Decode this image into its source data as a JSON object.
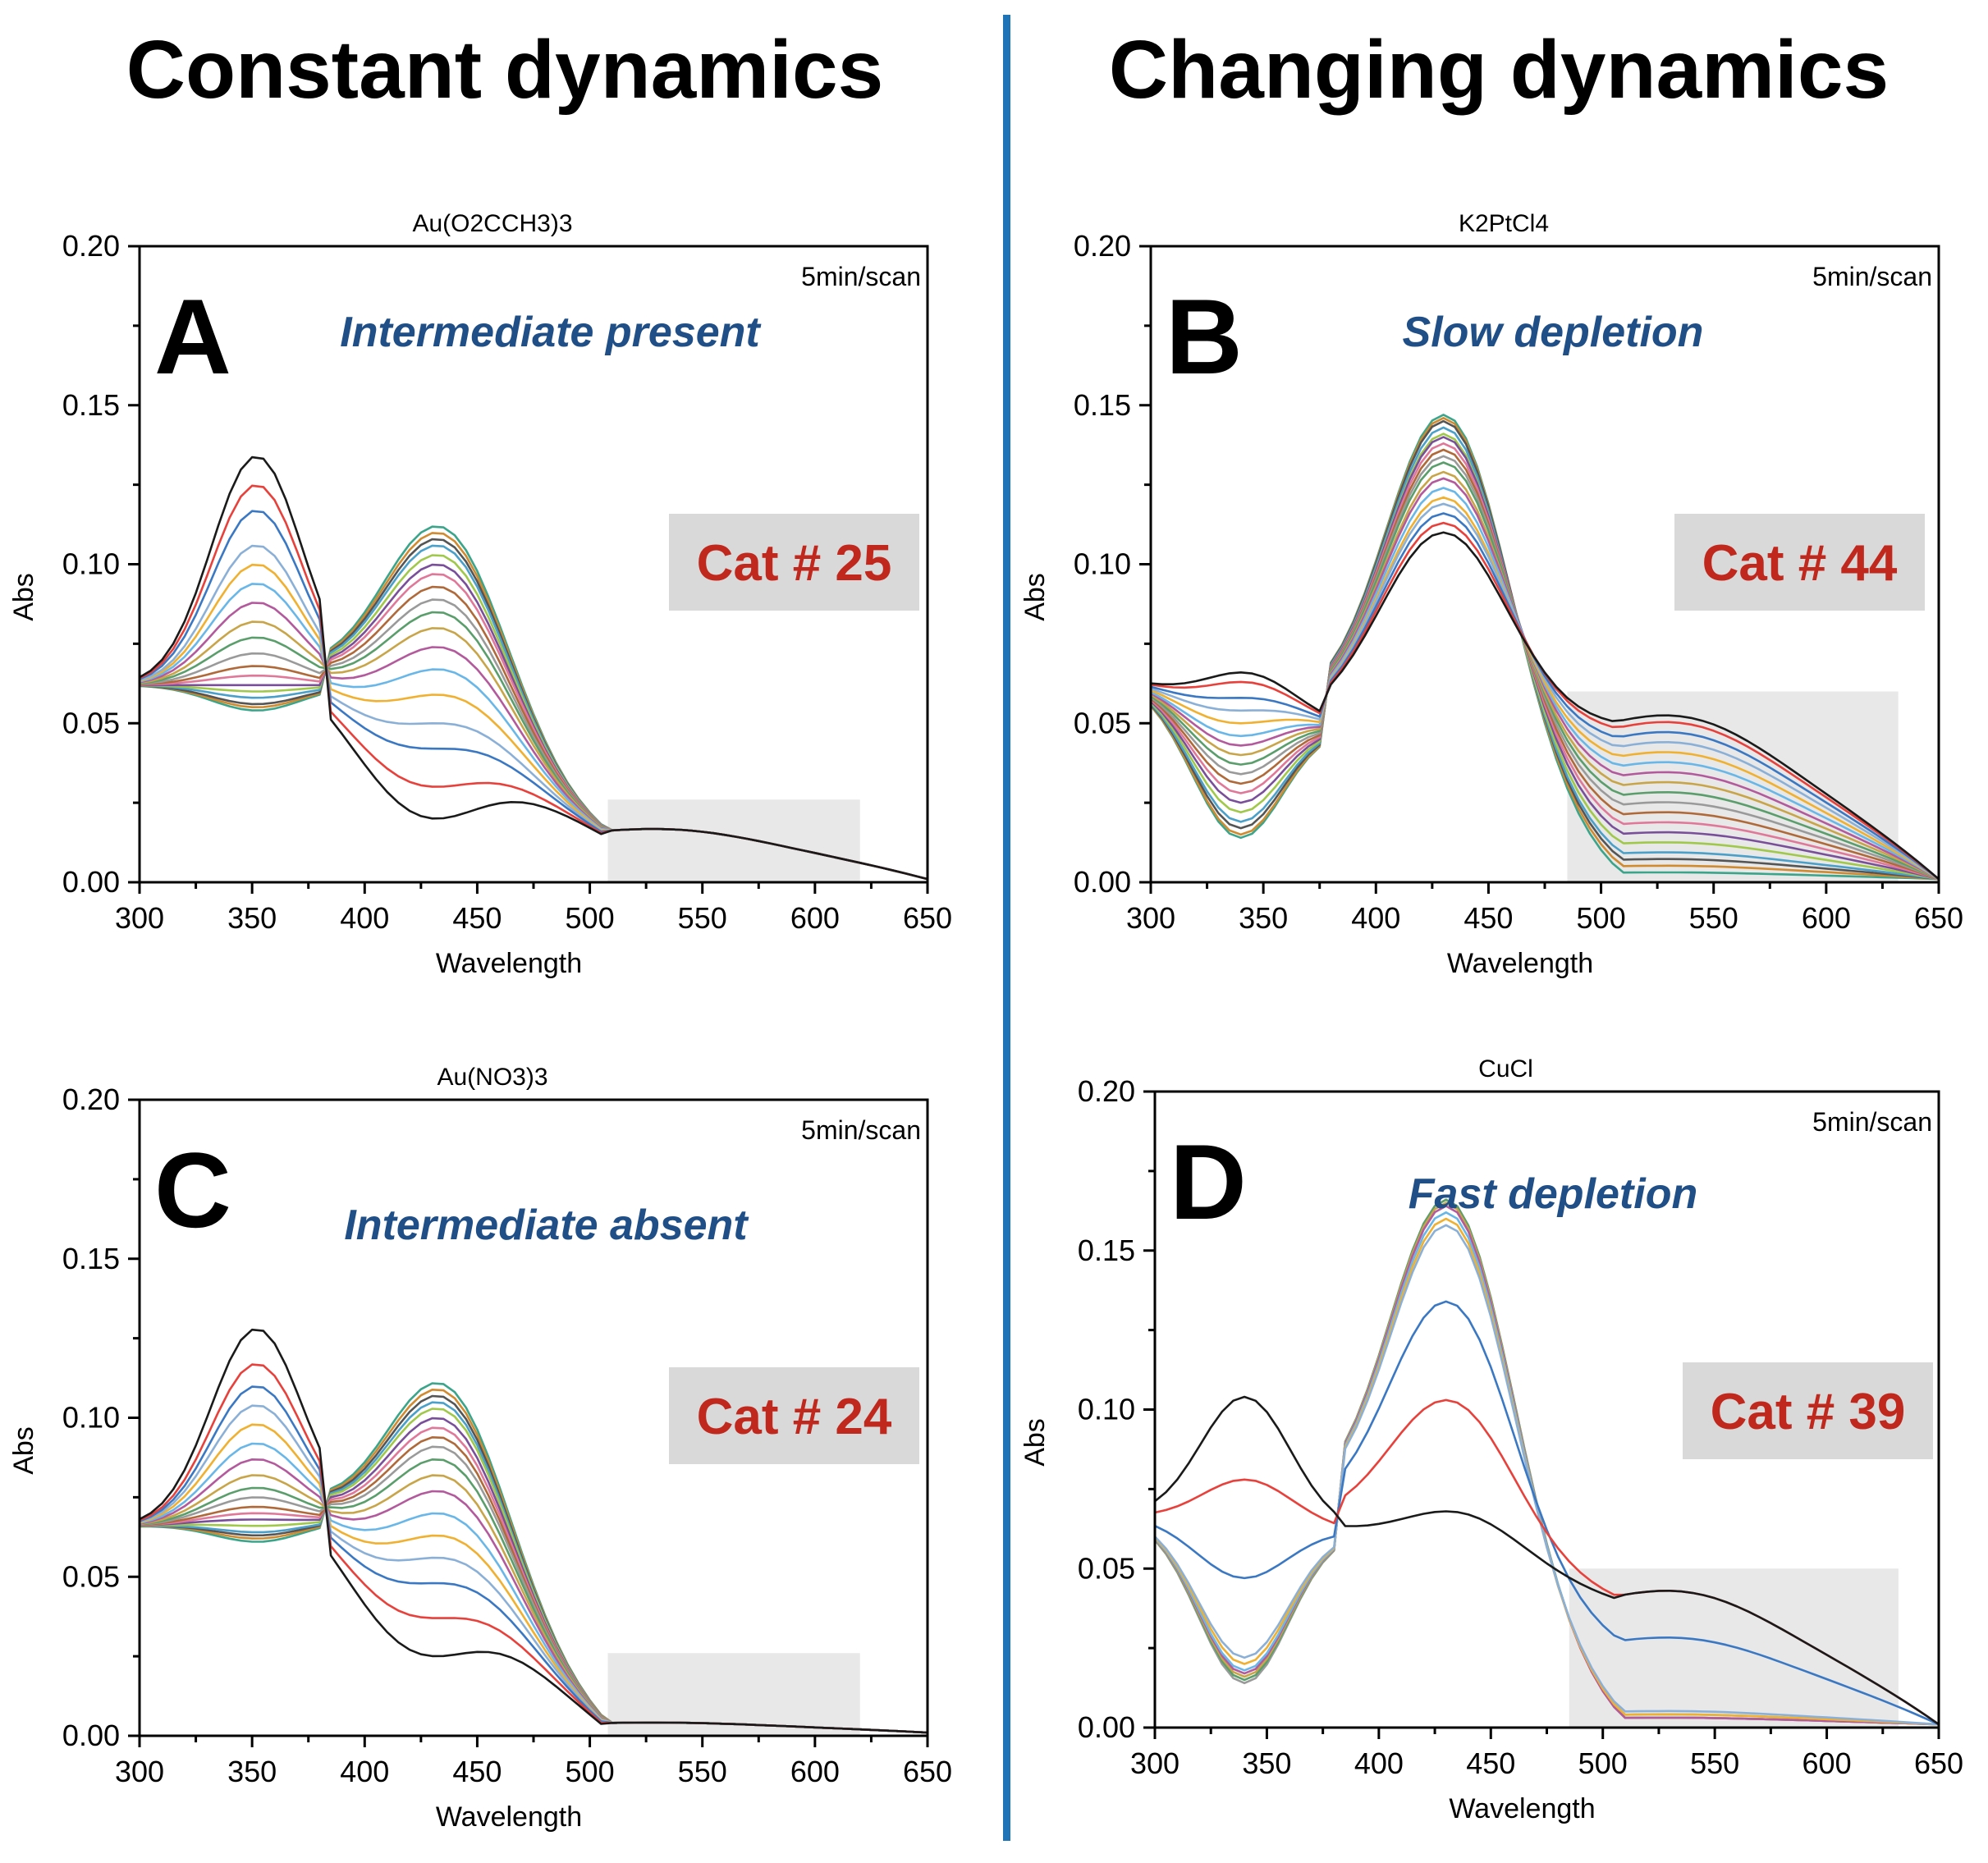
{
  "header": {
    "left": "Constant dynamics",
    "right": "Changing dynamics"
  },
  "colors": {
    "divider": "#1f74b8",
    "annotation": "#1f4f86",
    "cat_label": "#c0281d",
    "cat_box": "#d9d9d9",
    "shade": "#e8e8e8"
  },
  "chart_data": [
    {
      "id": "A",
      "type": "line",
      "title": "Au(O2CCH3)3",
      "panel_letter": "A",
      "annotation": "Intermediate present",
      "scan_note": "5min/scan",
      "category_label": "Cat # 25",
      "xlabel": "Wavelength",
      "ylabel": "Abs",
      "xlim": [
        300,
        650
      ],
      "ylim": [
        0,
        0.2
      ],
      "xticks": [
        "300",
        "350",
        "400",
        "450",
        "500",
        "550",
        "600",
        "650"
      ],
      "yticks": [
        "0.00",
        "0.05",
        "0.10",
        "0.15",
        "0.20"
      ],
      "shade_region": {
        "x": [
          508,
          620
        ],
        "y": [
          0,
          0.026
        ]
      },
      "iso": [
        383,
        0.062
      ],
      "start": 0.062,
      "peak1_x": 352,
      "peak2_x": 432,
      "p1": [
        0.134,
        0.125,
        0.117,
        0.106,
        0.1,
        0.094,
        0.088,
        0.082,
        0.077,
        0.072,
        0.068,
        0.065,
        0.062,
        0.06,
        0.058,
        0.056,
        0.055,
        0.054
      ],
      "p2": [
        0.02,
        0.03,
        0.042,
        0.05,
        0.059,
        0.067,
        0.074,
        0.08,
        0.085,
        0.089,
        0.093,
        0.097,
        0.1,
        0.103,
        0.106,
        0.108,
        0.11,
        0.112
      ],
      "tail": [
        0.015,
        0.015,
        0.015,
        0.015,
        0.015,
        0.015,
        0.015,
        0.015,
        0.015,
        0.015,
        0.015,
        0.015,
        0.015,
        0.015,
        0.015,
        0.015,
        0.015,
        0.015
      ]
    },
    {
      "id": "B",
      "type": "line",
      "title": "K2PtCl4",
      "panel_letter": "B",
      "annotation": "Slow depletion",
      "scan_note": "5min/scan",
      "category_label": "Cat # 44",
      "xlabel": "Wavelength",
      "ylabel": "Abs",
      "xlim": [
        300,
        650
      ],
      "ylim": [
        0,
        0.2
      ],
      "xticks": [
        "300",
        "350",
        "400",
        "450",
        "500",
        "550",
        "600",
        "650"
      ],
      "yticks": [
        "0.00",
        "0.05",
        "0.10",
        "0.15",
        "0.20"
      ],
      "shade_region": {
        "x": [
          485,
          632
        ],
        "y": [
          0,
          0.06
        ]
      },
      "iso": [
        378,
        0.05
      ],
      "start": 0.062,
      "peak1_x": 340,
      "peak2_x": 430,
      "p1": [
        0.066,
        0.063,
        0.058,
        0.054,
        0.05,
        0.046,
        0.043,
        0.04,
        0.037,
        0.034,
        0.031,
        0.028,
        0.025,
        0.022,
        0.019,
        0.017,
        0.015,
        0.014
      ],
      "p2": [
        0.11,
        0.113,
        0.116,
        0.119,
        0.121,
        0.124,
        0.127,
        0.129,
        0.132,
        0.134,
        0.136,
        0.138,
        0.14,
        0.141,
        0.143,
        0.145,
        0.146,
        0.147
      ],
      "tail": [
        0.049,
        0.047,
        0.044,
        0.041,
        0.038,
        0.035,
        0.032,
        0.029,
        0.026,
        0.023,
        0.02,
        0.017,
        0.014,
        0.011,
        0.008,
        0.006,
        0.004,
        0.002
      ]
    },
    {
      "id": "C",
      "type": "line",
      "title": "Au(NO3)3",
      "panel_letter": "C",
      "annotation": "Intermediate absent",
      "scan_note": "5min/scan",
      "category_label": "Cat # 24",
      "xlabel": "Wavelength",
      "ylabel": "Abs",
      "xlim": [
        300,
        650
      ],
      "ylim": [
        0,
        0.2
      ],
      "xticks": [
        "300",
        "350",
        "400",
        "450",
        "500",
        "550",
        "600",
        "650"
      ],
      "yticks": [
        "0.00",
        "0.05",
        "0.10",
        "0.15",
        "0.20"
      ],
      "shade_region": {
        "x": [
          508,
          620
        ],
        "y": [
          0,
          0.026
        ]
      },
      "iso": [
        383,
        0.068
      ],
      "start": 0.066,
      "peak1_x": 352,
      "peak2_x": 432,
      "p1": [
        0.128,
        0.117,
        0.11,
        0.104,
        0.098,
        0.092,
        0.087,
        0.082,
        0.078,
        0.075,
        0.072,
        0.07,
        0.068,
        0.066,
        0.064,
        0.063,
        0.062,
        0.061
      ],
      "p2": [
        0.025,
        0.037,
        0.048,
        0.056,
        0.063,
        0.07,
        0.077,
        0.082,
        0.087,
        0.091,
        0.094,
        0.097,
        0.1,
        0.103,
        0.105,
        0.107,
        0.109,
        0.111
      ],
      "tail": [
        0.003,
        0.003,
        0.003,
        0.003,
        0.003,
        0.003,
        0.003,
        0.003,
        0.003,
        0.003,
        0.003,
        0.003,
        0.003,
        0.003,
        0.003,
        0.003,
        0.003,
        0.003
      ]
    },
    {
      "id": "D",
      "type": "line",
      "title": "CuCl",
      "panel_letter": "D",
      "annotation": "Fast depletion",
      "scan_note": "5min/scan",
      "category_label": "Cat # 39",
      "xlabel": "Wavelength",
      "ylabel": "Abs",
      "xlim": [
        300,
        650
      ],
      "ylim": [
        0,
        0.2
      ],
      "xticks": [
        "300",
        "350",
        "400",
        "450",
        "500",
        "550",
        "600",
        "650"
      ],
      "yticks": [
        "0.00",
        "0.05",
        "0.10",
        "0.15",
        "0.20"
      ],
      "shade_region": {
        "x": [
          485,
          632
        ],
        "y": [
          0,
          0.05
        ]
      },
      "iso": [
        383,
        0.062
      ],
      "start": 0.066,
      "peak1_x": 340,
      "peak2_x": 430,
      "p1": [
        0.104,
        0.078,
        0.047,
        0.022,
        0.02,
        0.018,
        0.017,
        0.016,
        0.015,
        0.014
      ],
      "p2": [
        0.068,
        0.103,
        0.134,
        0.158,
        0.16,
        0.162,
        0.164,
        0.165,
        0.166,
        0.166
      ],
      "tail": [
        0.04,
        0.04,
        0.026,
        0.004,
        0.003,
        0.003,
        0.002,
        0.002,
        0.002,
        0.002
      ]
    }
  ]
}
